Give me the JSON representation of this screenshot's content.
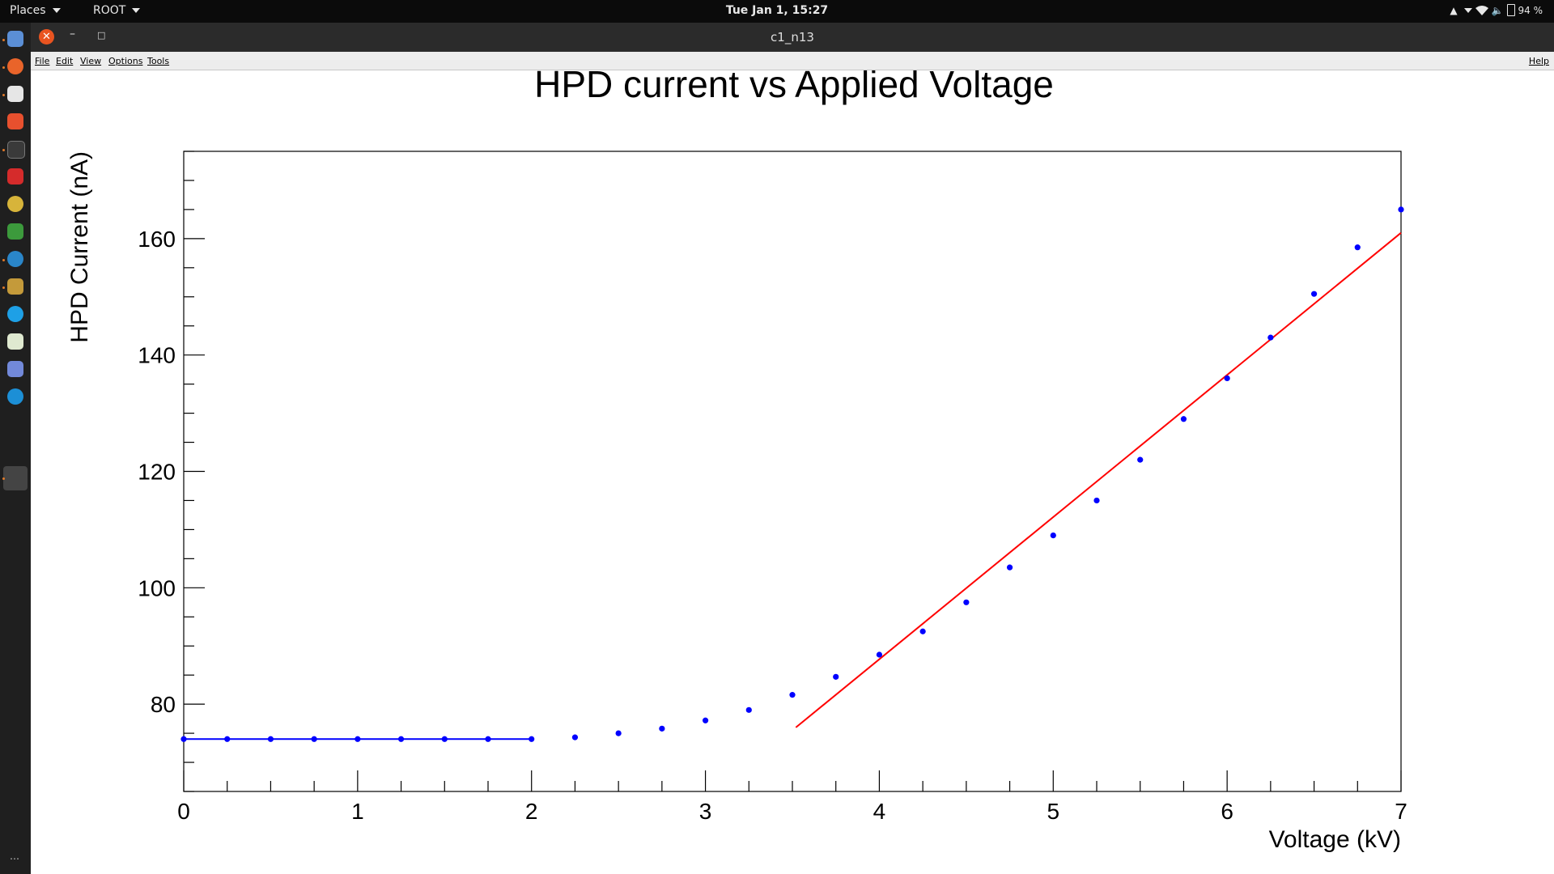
{
  "topbar": {
    "places_label": "Places",
    "app_label": "ROOT",
    "clock": "Tue Jan  1, 15:27",
    "battery": "94 %"
  },
  "window": {
    "title": "c1_n13"
  },
  "menu": {
    "file": "File",
    "edit": "Edit",
    "view": "View",
    "options": "Options",
    "tools": "Tools",
    "help": "Help"
  },
  "dock": {
    "icons": [
      "files-icon",
      "firefox-icon",
      "text-editor-icon",
      "software-center-icon",
      "terminal-icon",
      "settings-icon",
      "disk-icon",
      "spreadsheet-icon",
      "web-icon",
      "gimp-icon",
      "skype-icon",
      "document-viewer-icon",
      "discord-icon",
      "browser-icon"
    ]
  },
  "chart_data": {
    "type": "scatter",
    "title": "HPD current vs Applied Voltage",
    "xlabel": "Voltage (kV)",
    "ylabel": "HPD Current (nA)",
    "xlim": [
      0,
      7
    ],
    "ylim": [
      65,
      175
    ],
    "x_ticks": [
      0,
      1,
      2,
      3,
      4,
      5,
      6,
      7
    ],
    "y_ticks": [
      80,
      100,
      120,
      140,
      160
    ],
    "grid": false,
    "series": [
      {
        "marker_color": "#0000ff",
        "x": [
          0,
          0.25,
          0.5,
          0.75,
          1.0,
          1.25,
          1.5,
          1.75,
          2.0,
          2.25,
          2.5,
          2.75,
          3.0,
          3.25,
          3.5,
          3.75,
          4.0,
          4.25,
          4.5,
          4.75,
          5.0,
          5.25,
          5.5,
          5.75,
          6.0,
          6.25,
          6.5,
          6.75,
          7.0
        ],
        "y": [
          74.0,
          74.0,
          74.0,
          74.0,
          74.0,
          74.0,
          74.0,
          74.0,
          74.0,
          74.3,
          75.0,
          75.8,
          77.2,
          79.0,
          81.6,
          84.7,
          88.5,
          92.5,
          97.5,
          103.5,
          109.0,
          115.0,
          122.0,
          129.0,
          136.0,
          143.0,
          150.5,
          158.5,
          165.0
        ]
      }
    ],
    "fits": [
      {
        "color": "#0000ff",
        "x": [
          0,
          2.0
        ],
        "y": [
          74.0,
          74.0
        ]
      },
      {
        "color": "#ff0000",
        "x": [
          3.52,
          7.0
        ],
        "y": [
          76.0,
          161.0
        ]
      }
    ]
  }
}
